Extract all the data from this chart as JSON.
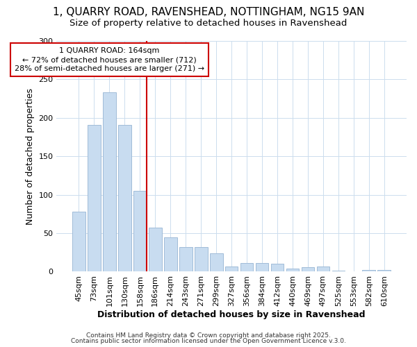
{
  "title1": "1, QUARRY ROAD, RAVENSHEAD, NOTTINGHAM, NG15 9AN",
  "title2": "Size of property relative to detached houses in Ravenshead",
  "xlabel": "Distribution of detached houses by size in Ravenshead",
  "ylabel": "Number of detached properties",
  "categories": [
    "45sqm",
    "73sqm",
    "101sqm",
    "130sqm",
    "158sqm",
    "186sqm",
    "214sqm",
    "243sqm",
    "271sqm",
    "299sqm",
    "327sqm",
    "356sqm",
    "384sqm",
    "412sqm",
    "440sqm",
    "469sqm",
    "497sqm",
    "525sqm",
    "553sqm",
    "582sqm",
    "610sqm"
  ],
  "values": [
    78,
    191,
    233,
    191,
    105,
    57,
    45,
    32,
    32,
    24,
    7,
    11,
    11,
    10,
    4,
    6,
    7,
    1,
    0,
    2,
    2
  ],
  "bar_color": "#c8dcf0",
  "bar_edge_color": "#a0bcd8",
  "red_line_index": 4,
  "annotation_title": "1 QUARRY ROAD: 164sqm",
  "annotation_line1": "← 72% of detached houses are smaller (712)",
  "annotation_line2": "28% of semi-detached houses are larger (271) →",
  "red_color": "#cc0000",
  "ylim": [
    0,
    300
  ],
  "yticks": [
    0,
    50,
    100,
    150,
    200,
    250,
    300
  ],
  "footer1": "Contains HM Land Registry data © Crown copyright and database right 2025.",
  "footer2": "Contains public sector information licensed under the Open Government Licence v.3.0.",
  "bg_color": "#ffffff",
  "title1_fontsize": 11,
  "title2_fontsize": 9.5,
  "annotation_fontsize": 8,
  "axis_label_fontsize": 9,
  "tick_fontsize": 8,
  "footer_fontsize": 6.5
}
